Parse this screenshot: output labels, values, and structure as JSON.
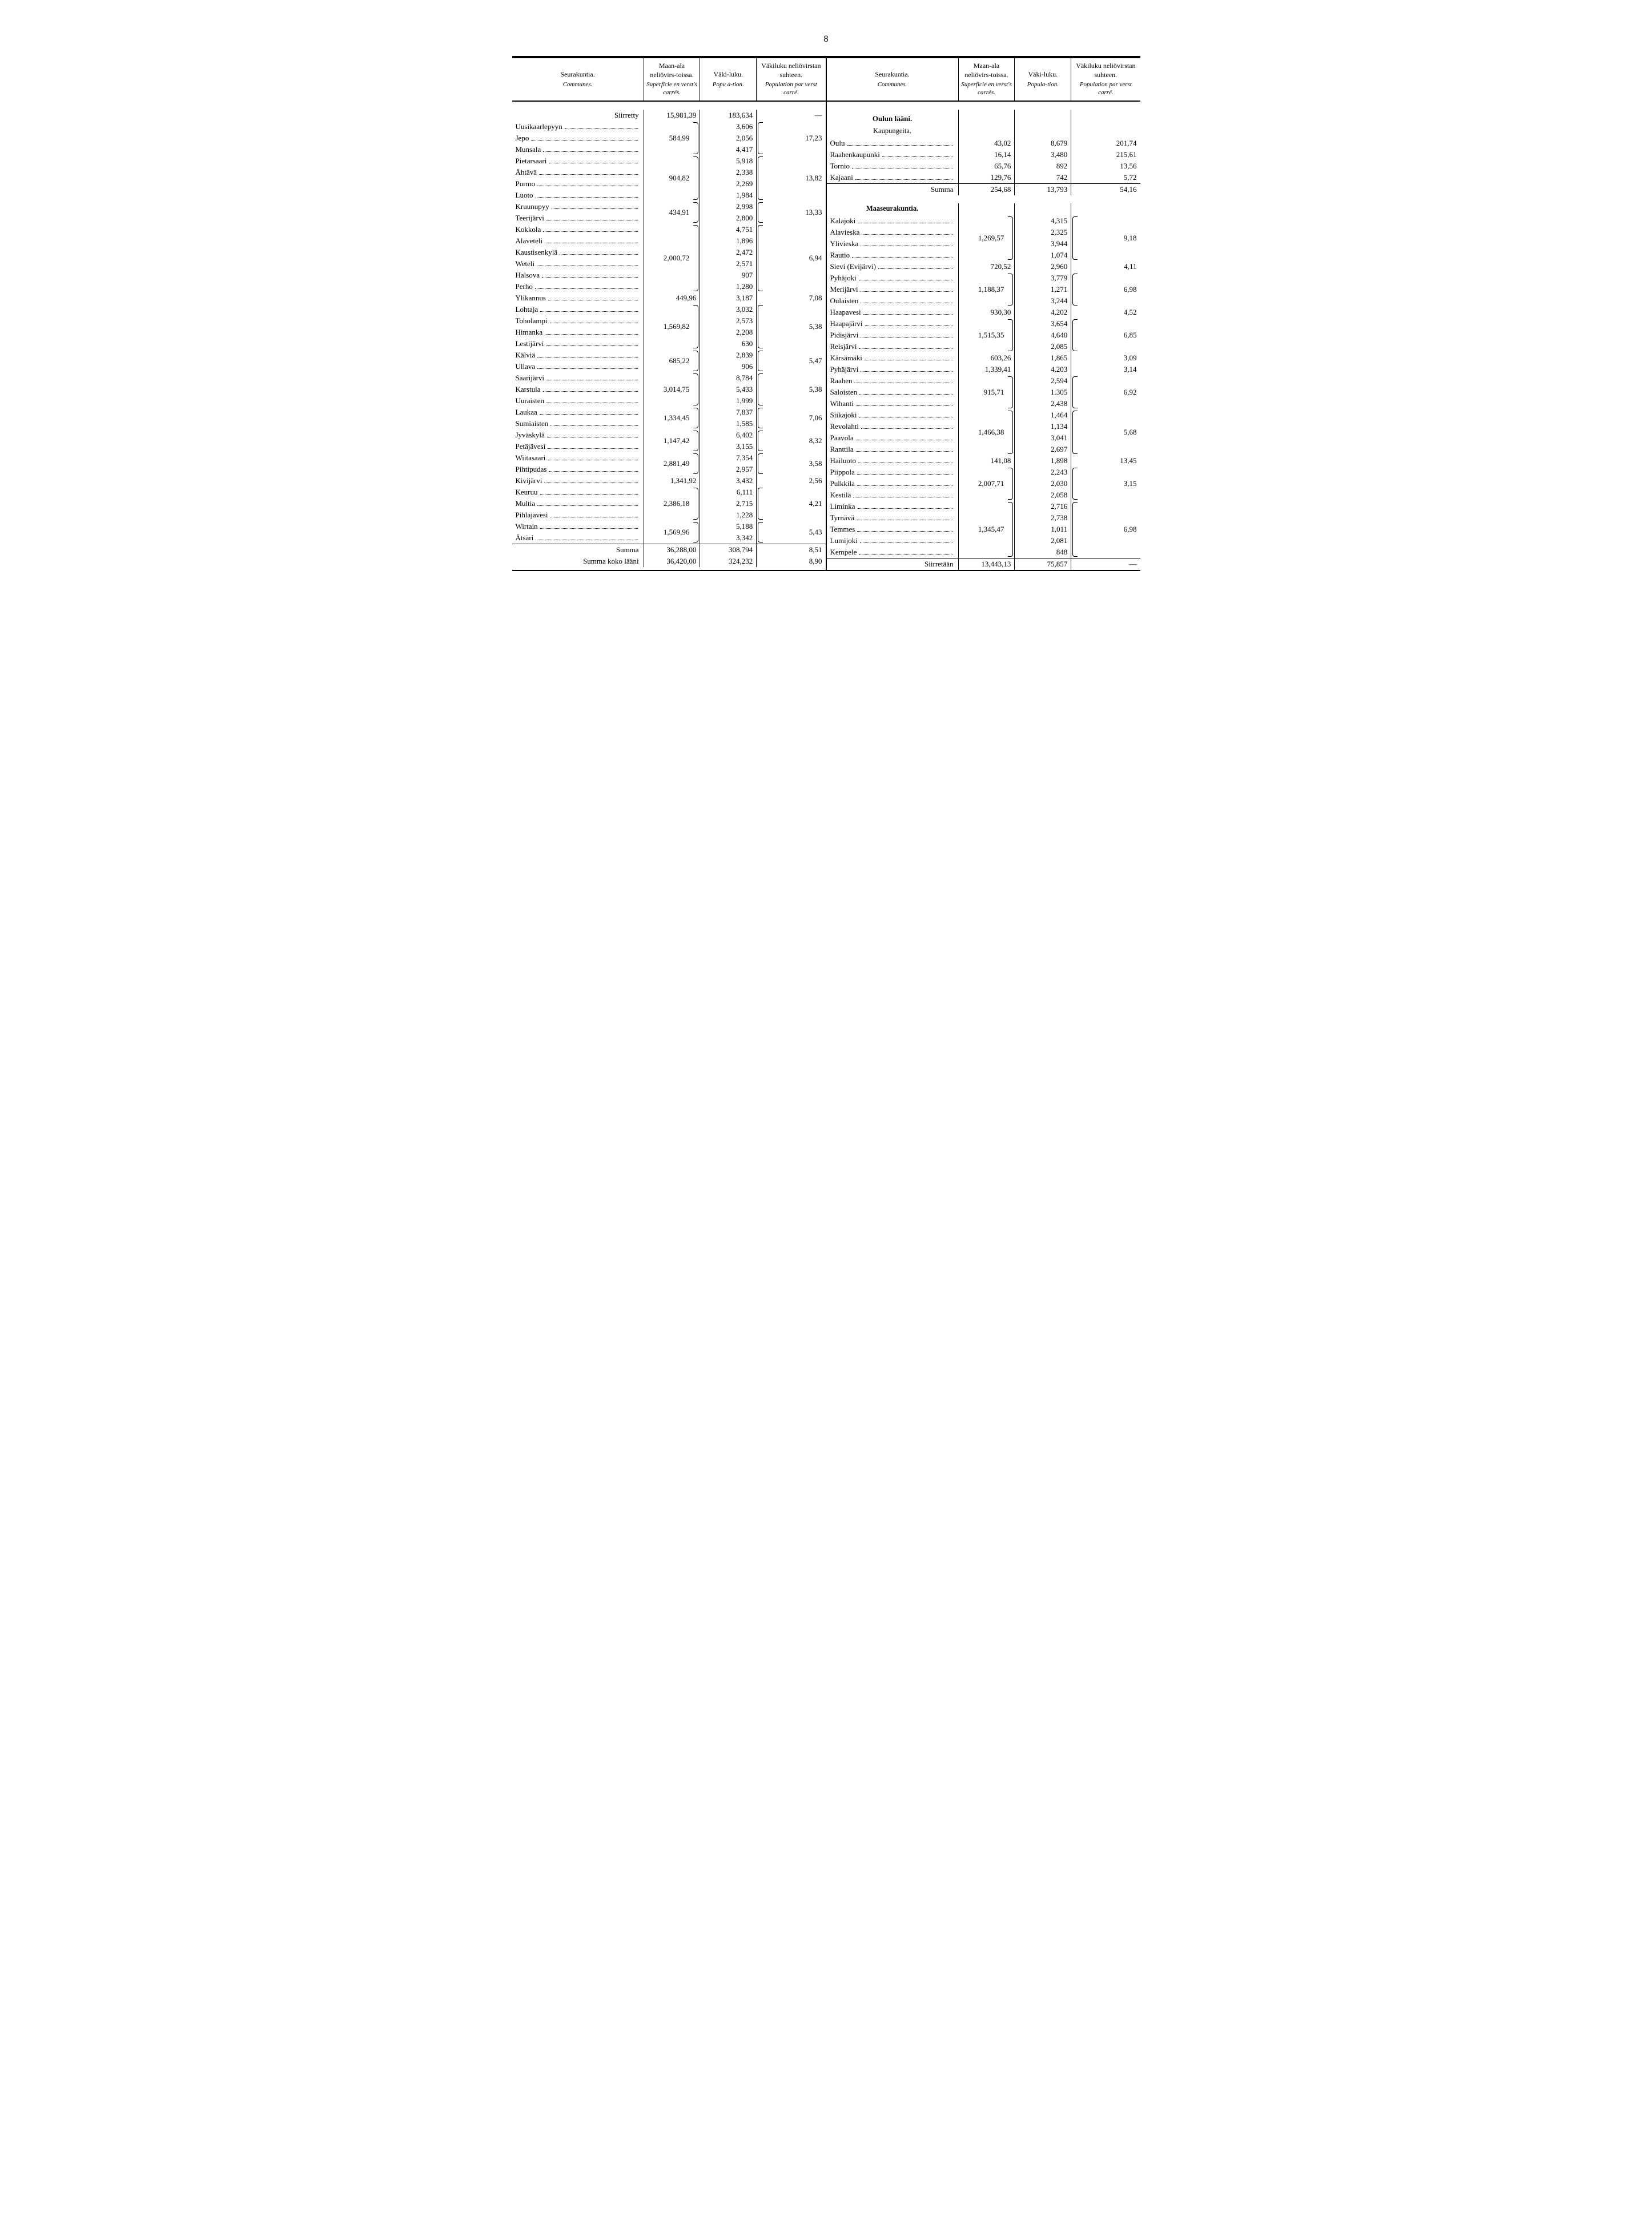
{
  "page_number": "8",
  "headers": {
    "name_main": "Seurakuntia.",
    "name_sub": "Communes.",
    "area_main": "Maan-ala neliövirs-toissa.",
    "area_sub": "Superficie en verst's carrés.",
    "pop_main": "Väki-luku.",
    "pop_sub": "Popu a-tion.",
    "pop_sub_r": "Popula-tion.",
    "dens_main": "Väkiluku neliövirstan suhteen.",
    "dens_sub": "Population par verst carré."
  },
  "left": {
    "siirretty": {
      "label": "Siirretty",
      "area": "15,981,39",
      "pop": "183,634",
      "dens": "—"
    },
    "groups": [
      {
        "area": "584,99",
        "dens": "17,23",
        "rows": [
          {
            "name": "Uusikaarlepyyn",
            "pop": "3,606"
          },
          {
            "name": "Jepo",
            "pop": "2,056"
          },
          {
            "name": "Munsala",
            "pop": "4,417"
          }
        ]
      },
      {
        "area": "904,82",
        "dens": "13,82",
        "rows": [
          {
            "name": "Pietarsaari",
            "pop": "5,918"
          },
          {
            "name": "Ähtävä",
            "pop": "2,338"
          },
          {
            "name": "Purmo",
            "pop": "2,269"
          },
          {
            "name": "Luoto",
            "pop": "1,984"
          }
        ]
      },
      {
        "area": "434,91",
        "dens": "13,33",
        "rows": [
          {
            "name": "Kruunupyy",
            "pop": "2,998"
          },
          {
            "name": "Teerijärvi",
            "pop": "2,800"
          }
        ]
      },
      {
        "area": "2,000,72",
        "dens": "6,94",
        "rows": [
          {
            "name": "Kokkola",
            "pop": "4,751"
          },
          {
            "name": "Alaveteli",
            "pop": "1,896"
          },
          {
            "name": "Kaustisenkylä",
            "pop": "2,472"
          },
          {
            "name": "Weteli",
            "pop": "2,571"
          },
          {
            "name": "Halsova",
            "pop": "907"
          },
          {
            "name": "Perho",
            "pop": "1,280"
          }
        ]
      },
      {
        "area": "449,96",
        "dens": "7,08",
        "rows": [
          {
            "name": "Ylikannus",
            "pop": "3,187"
          }
        ]
      },
      {
        "area": "1,569,82",
        "dens": "5,38",
        "rows": [
          {
            "name": "Lohtaja",
            "pop": "3,032"
          },
          {
            "name": "Toholampi",
            "pop": "2,573"
          },
          {
            "name": "Himanka",
            "pop": "2,208"
          },
          {
            "name": "Lestijärvi",
            "pop": "630"
          }
        ]
      },
      {
        "area": "685,22",
        "dens": "5,47",
        "rows": [
          {
            "name": "Kälviä",
            "pop": "2,839"
          },
          {
            "name": "Ullava",
            "pop": "906"
          }
        ]
      },
      {
        "area": "3,014,75",
        "dens": "5,38",
        "rows": [
          {
            "name": "Saarijärvi",
            "pop": "8,784"
          },
          {
            "name": "Karstula",
            "pop": "5,433"
          },
          {
            "name": "Uuraisten",
            "pop": "1,999"
          }
        ]
      },
      {
        "area": "1,334,45",
        "dens": "7,06",
        "rows": [
          {
            "name": "Laukaa",
            "pop": "7,837"
          },
          {
            "name": "Sumiaisten",
            "pop": "1,585"
          }
        ]
      },
      {
        "area": "1,147,42",
        "dens": "8,32",
        "rows": [
          {
            "name": "Jyväskylä",
            "pop": "6,402"
          },
          {
            "name": "Petäjävesi",
            "pop": "3,155"
          }
        ]
      },
      {
        "area": "2,881,49",
        "dens": "3,58",
        "rows": [
          {
            "name": "Wiitasaari",
            "pop": "7,354"
          },
          {
            "name": "Pihtipudas",
            "pop": "2,957"
          }
        ]
      },
      {
        "area": "1,341,92",
        "dens": "2,56",
        "rows": [
          {
            "name": "Kivijärvi",
            "pop": "3,432"
          }
        ]
      },
      {
        "area": "2,386,18",
        "dens": "4,21",
        "rows": [
          {
            "name": "Keuruu",
            "pop": "6,111"
          },
          {
            "name": "Multia",
            "pop": "2,715"
          },
          {
            "name": "Pihlajavesi",
            "pop": "1,228"
          }
        ]
      },
      {
        "area": "1,569,96",
        "dens": "5,43",
        "rows": [
          {
            "name": "Wirtain",
            "pop": "5,188"
          },
          {
            "name": "Ätsäri",
            "pop": "3,342"
          }
        ]
      }
    ],
    "summa": {
      "label": "Summa",
      "area": "36,288,00",
      "pop": "308,794",
      "dens": "8,51"
    },
    "summa_koko": {
      "label": "Summa koko lääni",
      "area": "36,420,00",
      "pop": "324,232",
      "dens": "8,90"
    }
  },
  "right": {
    "section_title": "Oulun lääni.",
    "kaupungeita_title": "Kaupungeita.",
    "kaupungeita": [
      {
        "name": "Oulu",
        "area": "43,02",
        "pop": "8,679",
        "dens": "201,74"
      },
      {
        "name": "Raahenkaupunki",
        "area": "16,14",
        "pop": "3,480",
        "dens": "215,61"
      },
      {
        "name": "Tornio",
        "area": "65,76",
        "pop": "892",
        "dens": "13,56"
      },
      {
        "name": "Kajaani",
        "area": "129,76",
        "pop": "742",
        "dens": "5,72"
      }
    ],
    "kaupungeita_summa": {
      "label": "Summa",
      "area": "254,68",
      "pop": "13,793",
      "dens": "54,16"
    },
    "maaseura_title": "Maaseurakuntia.",
    "groups": [
      {
        "area": "1,269,57",
        "dens": "9,18",
        "rows": [
          {
            "name": "Kalajoki",
            "pop": "4,315"
          },
          {
            "name": "Alavieska",
            "pop": "2,325"
          },
          {
            "name": "Ylivieska",
            "pop": "3,944"
          },
          {
            "name": "Rautio",
            "pop": "1,074"
          }
        ]
      },
      {
        "area": "720,52",
        "dens": "4,11",
        "rows": [
          {
            "name": "Sievi (Evijärvi)",
            "pop": "2,960"
          }
        ]
      },
      {
        "area": "1,188,37",
        "dens": "6,98",
        "rows": [
          {
            "name": "Pyhäjoki",
            "pop": "3,779"
          },
          {
            "name": "Merijärvi",
            "pop": "1,271"
          },
          {
            "name": "Oulaisten",
            "pop": "3,244"
          }
        ]
      },
      {
        "area": "930,30",
        "dens": "4,52",
        "rows": [
          {
            "name": "Haapavesi",
            "pop": "4,202"
          }
        ]
      },
      {
        "area": "1,515,35",
        "dens": "6,85",
        "rows": [
          {
            "name": "Haapajärvi",
            "pop": "3,654"
          },
          {
            "name": "Pidisjärvi",
            "pop": "4,640"
          },
          {
            "name": "Reisjärvi",
            "pop": "2,085"
          }
        ]
      },
      {
        "area": "603,26",
        "dens": "3,09",
        "rows": [
          {
            "name": "Kärsämäki",
            "pop": "1,865"
          }
        ]
      },
      {
        "area": "1,339,41",
        "dens": "3,14",
        "rows": [
          {
            "name": "Pyhäjärvi",
            "pop": "4,203"
          }
        ]
      },
      {
        "area": "915,71",
        "dens": "6,92",
        "rows": [
          {
            "name": "Raahen",
            "pop": "2,594"
          },
          {
            "name": "Saloisten",
            "pop": "1.305"
          },
          {
            "name": "Wihanti",
            "pop": "2,438"
          }
        ]
      },
      {
        "area": "1,466,38",
        "dens": "5,68",
        "rows": [
          {
            "name": "Siikajoki",
            "pop": "1,464"
          },
          {
            "name": "Revolahti",
            "pop": "1,134"
          },
          {
            "name": "Paavola",
            "pop": "3,041"
          },
          {
            "name": "Ranttila",
            "pop": "2,697"
          }
        ]
      },
      {
        "area": "141,08",
        "dens": "13,45",
        "rows": [
          {
            "name": "Hailuoto",
            "pop": "1,898"
          }
        ]
      },
      {
        "area": "2,007,71",
        "dens": "3,15",
        "rows": [
          {
            "name": "Piippola",
            "pop": "2,243"
          },
          {
            "name": "Pulkkila",
            "pop": "2,030"
          },
          {
            "name": "Kestilä",
            "pop": "2,058"
          }
        ]
      },
      {
        "area": "1,345,47",
        "dens": "6,98",
        "rows": [
          {
            "name": "Liminka",
            "pop": "2,716"
          },
          {
            "name": "Tyrnävä",
            "pop": "2,738"
          },
          {
            "name": "Temmes",
            "pop": "1,011"
          },
          {
            "name": "Lumijoki",
            "pop": "2,081"
          },
          {
            "name": "Kempele",
            "pop": "848"
          }
        ]
      }
    ],
    "siirretaan": {
      "label": "Siirretään",
      "area": "13,443,13",
      "pop": "75,857",
      "dens": "—"
    }
  }
}
